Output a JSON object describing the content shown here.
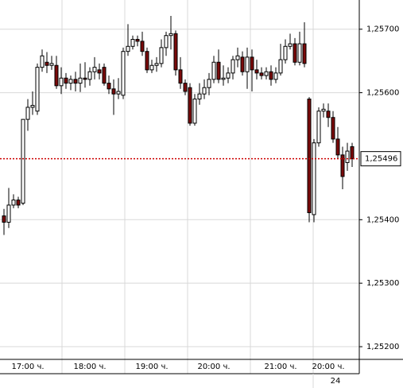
{
  "chart_data": {
    "type": "candlestick",
    "open": [
      1.25406,
      1.25396,
      1.25423,
      1.25431,
      1.25426,
      1.25558,
      1.25577,
      1.25571,
      1.2564,
      1.25648,
      1.25643,
      1.25643,
      1.25611,
      1.25623,
      1.25615,
      1.25621,
      1.25615,
      1.25623,
      1.25621,
      1.25633,
      1.25636,
      1.2564,
      1.25615,
      1.25606,
      1.25598,
      1.25596,
      1.25665,
      1.25673,
      1.25684,
      1.25681,
      1.25665,
      1.25636,
      1.25643,
      1.25646,
      1.25671,
      1.2569,
      1.25693,
      1.25636,
      1.25615,
      1.25608,
      1.25552,
      1.2559,
      1.25598,
      1.25608,
      1.25621,
      1.25648,
      1.25621,
      1.25623,
      1.25631,
      1.25652,
      1.25656,
      1.25633,
      1.25656,
      1.25636,
      1.25631,
      1.25627,
      1.25633,
      1.25621,
      1.25631,
      1.25652,
      1.25673,
      1.25677,
      1.25648,
      1.25677,
      1.2559,
      1.25408,
      1.25521,
      1.25571,
      1.25571,
      1.25561,
      1.25527,
      1.25502,
      1.2549,
      1.25515
    ],
    "high": [
      1.25417,
      1.2545,
      1.2544,
      1.25436,
      1.25558,
      1.2559,
      1.25602,
      1.25646,
      1.25668,
      1.25664,
      1.25658,
      1.25658,
      1.2564,
      1.25631,
      1.25627,
      1.25633,
      1.25646,
      1.25648,
      1.2564,
      1.25656,
      1.25646,
      1.25646,
      1.25627,
      1.25621,
      1.25623,
      1.25671,
      1.25708,
      1.2569,
      1.2569,
      1.25696,
      1.25671,
      1.25652,
      1.25656,
      1.25684,
      1.25696,
      1.25721,
      1.25698,
      1.25656,
      1.25621,
      1.25615,
      1.25598,
      1.25615,
      1.25621,
      1.25631,
      1.25658,
      1.25668,
      1.25643,
      1.2564,
      1.25658,
      1.25671,
      1.25665,
      1.25671,
      1.25668,
      1.25652,
      1.2564,
      1.2564,
      1.25643,
      1.2564,
      1.25677,
      1.25684,
      1.25693,
      1.25686,
      1.25696,
      1.25711,
      1.25593,
      1.25527,
      1.25577,
      1.25583,
      1.25583,
      1.25571,
      1.25546,
      1.25515,
      1.25521,
      1.25521
    ],
    "low": [
      1.25376,
      1.25387,
      1.25418,
      1.25418,
      1.25423,
      1.2554,
      1.25565,
      1.25565,
      1.25633,
      1.25631,
      1.25636,
      1.25606,
      1.25598,
      1.25606,
      1.25604,
      1.25602,
      1.25601,
      1.25608,
      1.25611,
      1.25621,
      1.25621,
      1.25611,
      1.25598,
      1.25565,
      1.2559,
      1.2559,
      1.25658,
      1.25668,
      1.25673,
      1.25658,
      1.25631,
      1.25631,
      1.25633,
      1.2564,
      1.25658,
      1.25668,
      1.25627,
      1.25606,
      1.25596,
      1.25548,
      1.25548,
      1.25581,
      1.2559,
      1.25596,
      1.25615,
      1.25615,
      1.25611,
      1.25615,
      1.25621,
      1.2564,
      1.25627,
      1.25606,
      1.25602,
      1.25621,
      1.25621,
      1.25621,
      1.25611,
      1.25615,
      1.25627,
      1.25646,
      1.25668,
      1.25643,
      1.25643,
      1.2564,
      1.25396,
      1.25396,
      1.25515,
      1.25561,
      1.25546,
      1.25521,
      1.25496,
      1.25448,
      1.25477,
      1.25483
    ],
    "close": [
      1.25396,
      1.25423,
      1.25431,
      1.25423,
      1.25558,
      1.25577,
      1.2558,
      1.2564,
      1.25658,
      1.25643,
      1.25646,
      1.25611,
      1.25623,
      1.25615,
      1.25621,
      1.25615,
      1.25623,
      1.25621,
      1.25633,
      1.2564,
      1.25631,
      1.25615,
      1.25606,
      1.25598,
      1.25602,
      1.25665,
      1.25673,
      1.25684,
      1.25681,
      1.25665,
      1.25636,
      1.25643,
      1.25646,
      1.25671,
      1.2569,
      1.25693,
      1.25636,
      1.25615,
      1.25602,
      1.25552,
      1.2559,
      1.25598,
      1.25608,
      1.25621,
      1.25648,
      1.25621,
      1.25623,
      1.25631,
      1.25652,
      1.25658,
      1.25633,
      1.25656,
      1.25636,
      1.25631,
      1.25627,
      1.25633,
      1.25621,
      1.25631,
      1.25652,
      1.25673,
      1.25677,
      1.25648,
      1.25677,
      1.25646,
      1.25411,
      1.25521,
      1.25571,
      1.25574,
      1.25561,
      1.25527,
      1.25502,
      1.25468,
      1.25508,
      1.25496
    ],
    "up_color": "#ffffff",
    "down_color": "#7a0a0a",
    "ylim": [
      1.2518,
      1.25746
    ],
    "yticks": [
      {
        "value": 1.257,
        "label": "1,25700"
      },
      {
        "value": 1.256,
        "label": "1,25600"
      },
      {
        "value": 1.254,
        "label": "1,25400"
      },
      {
        "value": 1.253,
        "label": "1,25300"
      },
      {
        "value": 1.252,
        "label": "1,25200"
      }
    ],
    "grid": true,
    "current_price": {
      "value": 1.25496,
      "label": "1,25496",
      "color": "#cc0000"
    },
    "xticks": [
      {
        "value": 5,
        "label": "17:00 ч."
      },
      {
        "value": 18,
        "label": "18:00 ч."
      },
      {
        "value": 31,
        "label": "19:00 ч."
      },
      {
        "value": 44,
        "label": "20:00 ч."
      },
      {
        "value": 58,
        "label": "21:00 ч."
      },
      {
        "value": 68,
        "label": "20:00 ч."
      }
    ],
    "day_label": "24"
  }
}
